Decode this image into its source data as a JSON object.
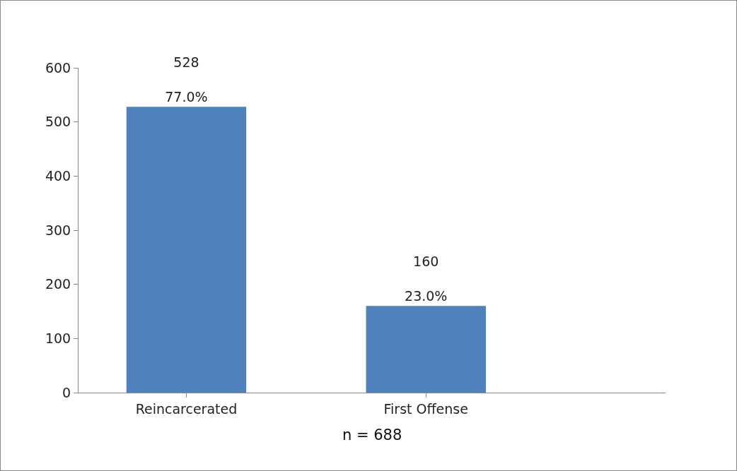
{
  "chart_data": {
    "type": "bar",
    "categories": [
      "Reincarcerated",
      "First Offense"
    ],
    "values": [
      528,
      160
    ],
    "color": "#4f81bd",
    "value_labels": [
      "528\n77.0%",
      "160\n23.0%"
    ],
    "ylim": [
      0,
      600
    ],
    "yticks": [
      0,
      100,
      200,
      300,
      400,
      500,
      600
    ],
    "grid": false,
    "annotations": [
      "n = 688"
    ]
  }
}
